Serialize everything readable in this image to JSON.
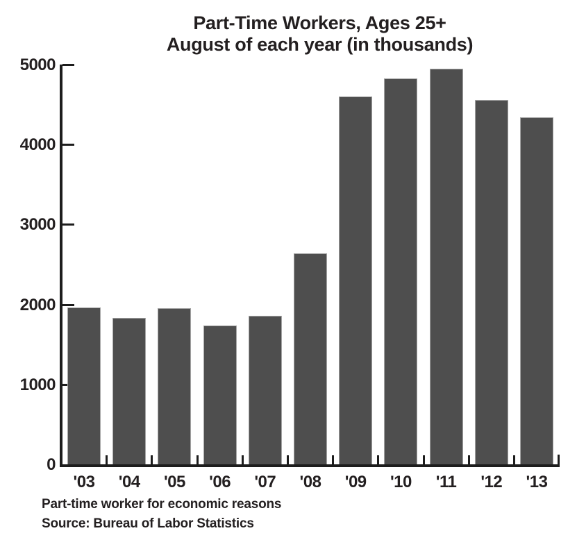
{
  "chart_data": {
    "type": "bar",
    "title": "Part-Time Workers, Ages 25+",
    "subtitle": "August of each year (in thousands)",
    "categories": [
      "'03",
      "'04",
      "'05",
      "'06",
      "'07",
      "'08",
      "'09",
      "'10",
      "'11",
      "'12",
      "'13"
    ],
    "values": [
      1960,
      1835,
      1955,
      1740,
      1860,
      2640,
      4605,
      4825,
      4950,
      4560,
      4340
    ],
    "xlabel": "",
    "ylabel": "",
    "ylim": [
      0,
      5000
    ],
    "yticks": [
      0,
      1000,
      2000,
      3000,
      4000,
      5000
    ],
    "grid": false,
    "legend": "none",
    "bar_color": "#4e4e4e",
    "axis_color": "#1d1d1d",
    "text_color": "#231f20"
  },
  "footer": {
    "note": "Part-time worker for economic reasons",
    "source": "Source: Bureau of Labor Statistics"
  }
}
